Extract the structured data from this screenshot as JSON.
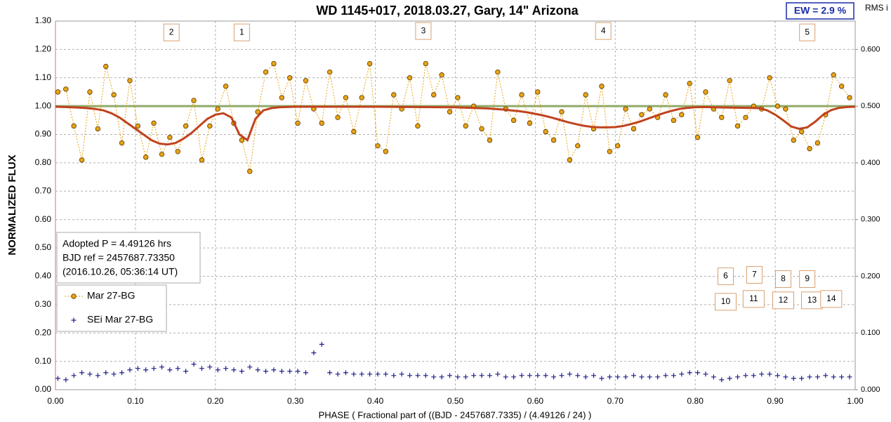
{
  "chart_data": {
    "type": "scatter",
    "title": "WD 1145+017, 2018.03.27, Gary,  14\" Arizona",
    "x_label": "PHASE  ( Fractional part of ((BJD - 2457687.7335)  / (4.49126  / 24) )",
    "y_label": "NORMALIZED  FLUX",
    "y2_label": "RMS i",
    "ew_label": "EW =  2.9 %",
    "info_lines": [
      "Adopted P = 4.49126 hrs",
      "BJD ref = 2457687.73350",
      "(2016.10.26, 05:36:14 UT)"
    ],
    "xlim": [
      0,
      1
    ],
    "ylim": [
      0,
      1.3
    ],
    "y2lim": [
      0,
      0.65
    ],
    "grid": true,
    "xticks": [
      {
        "value": 0,
        "label": "0.00"
      },
      {
        "value": 0.1,
        "label": "0.10"
      },
      {
        "value": 0.2,
        "label": "0.20"
      },
      {
        "value": 0.3,
        "label": "0.30"
      },
      {
        "value": 0.4,
        "label": "0.40"
      },
      {
        "value": 0.5,
        "label": "0.50"
      },
      {
        "value": 0.6,
        "label": "0.60"
      },
      {
        "value": 0.7,
        "label": "0.70"
      },
      {
        "value": 0.8,
        "label": "0.80"
      },
      {
        "value": 0.9,
        "label": "0.90"
      },
      {
        "value": 1,
        "label": "1.00"
      }
    ],
    "yticks": [
      {
        "value": 0,
        "label": "0.00"
      },
      {
        "value": 0.1,
        "label": "0.10"
      },
      {
        "value": 0.2,
        "label": "0.20"
      },
      {
        "value": 0.3,
        "label": "0.30"
      },
      {
        "value": 0.4,
        "label": "0.40"
      },
      {
        "value": 0.5,
        "label": "0.50"
      },
      {
        "value": 0.6,
        "label": "0.60"
      },
      {
        "value": 0.7,
        "label": "0.70"
      },
      {
        "value": 0.8,
        "label": "0.80"
      },
      {
        "value": 0.9,
        "label": "0.90"
      },
      {
        "value": 1,
        "label": "1.00"
      },
      {
        "value": 1.1,
        "label": "1.10"
      },
      {
        "value": 1.2,
        "label": "1.20"
      },
      {
        "value": 1.3,
        "label": "1.30"
      }
    ],
    "y2ticks": [
      {
        "value": 0,
        "label": "0.000"
      },
      {
        "value": 0.1,
        "label": "0.100"
      },
      {
        "value": 0.2,
        "label": "0.200"
      },
      {
        "value": 0.3,
        "label": "0.300"
      },
      {
        "value": 0.4,
        "label": "0.400"
      },
      {
        "value": 0.5,
        "label": "0.500"
      },
      {
        "value": 0.6,
        "label": "0.600"
      }
    ],
    "reference_line": {
      "value": 1,
      "color": "#8faa6a"
    },
    "series": [
      {
        "name": "Mar 27-BG",
        "color": "#e8a317",
        "marker": "circle",
        "line": "dotted",
        "x": [
          0.003,
          0.013,
          0.023,
          0.033,
          0.043,
          0.053,
          0.063,
          0.073,
          0.083,
          0.093,
          0.103,
          0.113,
          0.123,
          0.133,
          0.143,
          0.153,
          0.163,
          0.173,
          0.183,
          0.193,
          0.203,
          0.213,
          0.223,
          0.233,
          0.243,
          0.253,
          0.263,
          0.273,
          0.283,
          0.293,
          0.303,
          0.313,
          0.323,
          0.333,
          0.343,
          0.353,
          0.363,
          0.373,
          0.383,
          0.393,
          0.403,
          0.413,
          0.423,
          0.433,
          0.443,
          0.453,
          0.463,
          0.473,
          0.483,
          0.493,
          0.503,
          0.513,
          0.523,
          0.533,
          0.543,
          0.553,
          0.563,
          0.573,
          0.583,
          0.593,
          0.603,
          0.613,
          0.623,
          0.633,
          0.643,
          0.653,
          0.663,
          0.673,
          0.683,
          0.693,
          0.703,
          0.713,
          0.723,
          0.733,
          0.743,
          0.753,
          0.763,
          0.773,
          0.783,
          0.793,
          0.803,
          0.813,
          0.823,
          0.833,
          0.843,
          0.853,
          0.863,
          0.873,
          0.883,
          0.893,
          0.903,
          0.913,
          0.923,
          0.933,
          0.943,
          0.953,
          0.963,
          0.973,
          0.983,
          0.993
        ],
        "values": [
          1.05,
          1.06,
          0.93,
          0.81,
          1.05,
          0.92,
          1.14,
          1.04,
          0.87,
          1.09,
          0.93,
          0.82,
          0.94,
          0.83,
          0.89,
          0.84,
          0.93,
          1.02,
          0.81,
          0.93,
          0.99,
          1.07,
          0.94,
          0.88,
          0.77,
          0.98,
          1.12,
          1.15,
          1.03,
          1.1,
          0.94,
          1.09,
          0.99,
          0.94,
          1.12,
          0.96,
          1.03,
          0.91,
          1.03,
          1.15,
          0.86,
          0.84,
          1.04,
          0.99,
          1.1,
          0.93,
          1.15,
          1.04,
          1.11,
          0.98,
          1.03,
          0.93,
          1,
          0.92,
          0.88,
          1.12,
          0.99,
          0.95,
          1.04,
          0.94,
          1.05,
          0.91,
          0.88,
          0.98,
          0.81,
          0.86,
          1.04,
          0.92,
          1.07,
          0.84,
          0.86,
          0.99,
          0.92,
          0.97,
          0.99,
          0.96,
          1.04,
          0.95,
          0.97,
          1.08,
          0.89,
          1.05,
          0.99,
          0.96,
          1.09,
          0.93,
          0.96,
          1,
          0.99,
          1.1,
          1,
          0.99,
          0.88,
          0.91,
          0.85,
          0.87,
          0.97,
          1.11,
          1.07,
          1.03
        ]
      },
      {
        "name": "SEi Mar 27-BG",
        "color": "#1f1f8f",
        "marker": "plus",
        "line": "none",
        "x": [
          0.003,
          0.013,
          0.023,
          0.033,
          0.043,
          0.053,
          0.063,
          0.073,
          0.083,
          0.093,
          0.103,
          0.113,
          0.123,
          0.133,
          0.143,
          0.153,
          0.163,
          0.173,
          0.183,
          0.193,
          0.203,
          0.213,
          0.223,
          0.233,
          0.243,
          0.253,
          0.263,
          0.273,
          0.283,
          0.293,
          0.303,
          0.313,
          0.323,
          0.333,
          0.343,
          0.353,
          0.363,
          0.373,
          0.383,
          0.393,
          0.403,
          0.413,
          0.423,
          0.433,
          0.443,
          0.453,
          0.463,
          0.473,
          0.483,
          0.493,
          0.503,
          0.513,
          0.523,
          0.533,
          0.543,
          0.553,
          0.563,
          0.573,
          0.583,
          0.593,
          0.603,
          0.613,
          0.623,
          0.633,
          0.643,
          0.653,
          0.663,
          0.673,
          0.683,
          0.693,
          0.703,
          0.713,
          0.723,
          0.733,
          0.743,
          0.753,
          0.763,
          0.773,
          0.783,
          0.793,
          0.803,
          0.813,
          0.823,
          0.833,
          0.843,
          0.853,
          0.863,
          0.873,
          0.883,
          0.893,
          0.903,
          0.913,
          0.923,
          0.933,
          0.943,
          0.953,
          0.963,
          0.973,
          0.983,
          0.993
        ],
        "values": [
          0.04,
          0.035,
          0.05,
          0.06,
          0.055,
          0.05,
          0.06,
          0.055,
          0.06,
          0.07,
          0.075,
          0.07,
          0.075,
          0.08,
          0.07,
          0.075,
          0.065,
          0.09,
          0.075,
          0.08,
          0.07,
          0.075,
          0.07,
          0.065,
          0.08,
          0.07,
          0.065,
          0.07,
          0.065,
          0.065,
          0.065,
          0.06,
          0.13,
          0.16,
          0.06,
          0.055,
          0.06,
          0.055,
          0.055,
          0.055,
          0.055,
          0.055,
          0.05,
          0.055,
          0.05,
          0.05,
          0.05,
          0.045,
          0.045,
          0.05,
          0.045,
          0.045,
          0.05,
          0.05,
          0.05,
          0.055,
          0.045,
          0.045,
          0.05,
          0.05,
          0.05,
          0.05,
          0.045,
          0.05,
          0.055,
          0.05,
          0.045,
          0.05,
          0.04,
          0.045,
          0.045,
          0.045,
          0.05,
          0.045,
          0.045,
          0.045,
          0.05,
          0.05,
          0.055,
          0.06,
          0.06,
          0.055,
          0.045,
          0.035,
          0.04,
          0.045,
          0.05,
          0.05,
          0.055,
          0.055,
          0.05,
          0.045,
          0.04,
          0.04,
          0.045,
          0.045,
          0.05,
          0.045,
          0.045,
          0.045
        ]
      },
      {
        "color": "#c0431e",
        "marker": "none",
        "line": "solid",
        "x": [
          0,
          0.01,
          0.02,
          0.03,
          0.04,
          0.05,
          0.06,
          0.07,
          0.08,
          0.09,
          0.1,
          0.11,
          0.12,
          0.13,
          0.14,
          0.15,
          0.16,
          0.17,
          0.18,
          0.19,
          0.2,
          0.21,
          0.22,
          0.23,
          0.24,
          0.25,
          0.26,
          0.27,
          0.28,
          0.29,
          0.3,
          0.4,
          0.5,
          0.51,
          0.52,
          0.53,
          0.54,
          0.55,
          0.56,
          0.57,
          0.58,
          0.59,
          0.6,
          0.61,
          0.62,
          0.63,
          0.64,
          0.65,
          0.66,
          0.67,
          0.68,
          0.69,
          0.7,
          0.71,
          0.72,
          0.73,
          0.74,
          0.75,
          0.76,
          0.77,
          0.78,
          0.79,
          0.8,
          0.81,
          0.88,
          0.89,
          0.9,
          0.91,
          0.92,
          0.93,
          0.94,
          0.95,
          0.96,
          0.97,
          0.98,
          0.99,
          1
        ],
        "values": [
          0.998,
          0.997,
          0.996,
          0.995,
          0.993,
          0.99,
          0.985,
          0.975,
          0.96,
          0.94,
          0.92,
          0.9,
          0.88,
          0.868,
          0.865,
          0.87,
          0.885,
          0.905,
          0.93,
          0.955,
          0.97,
          0.975,
          0.96,
          0.9,
          0.88,
          0.955,
          0.985,
          0.993,
          0.996,
          0.997,
          0.998,
          0.998,
          0.996,
          0.995,
          0.994,
          0.993,
          0.992,
          0.99,
          0.988,
          0.985,
          0.982,
          0.978,
          0.973,
          0.967,
          0.96,
          0.952,
          0.944,
          0.937,
          0.931,
          0.927,
          0.925,
          0.925,
          0.926,
          0.93,
          0.937,
          0.945,
          0.955,
          0.965,
          0.975,
          0.983,
          0.99,
          0.994,
          0.996,
          0.997,
          0.993,
          0.985,
          0.97,
          0.95,
          0.928,
          0.92,
          0.925,
          0.945,
          0.97,
          0.986,
          0.994,
          0.997,
          0.998
        ]
      }
    ],
    "annotations": [
      {
        "text": "2",
        "x": 0.145,
        "y": 1.26
      },
      {
        "text": "1",
        "x": 0.233,
        "y": 1.26
      },
      {
        "text": "3",
        "x": 0.46,
        "y": 1.265
      },
      {
        "text": "4",
        "x": 0.685,
        "y": 1.265
      },
      {
        "text": "5",
        "x": 0.94,
        "y": 1.26
      },
      {
        "text": "6",
        "x": 0.838,
        "y": 0.4
      },
      {
        "text": "7",
        "x": 0.874,
        "y": 0.405
      },
      {
        "text": "8",
        "x": 0.91,
        "y": 0.39
      },
      {
        "text": "9",
        "x": 0.94,
        "y": 0.39
      },
      {
        "text": "10",
        "x": 0.838,
        "y": 0.31
      },
      {
        "text": "11",
        "x": 0.873,
        "y": 0.32
      },
      {
        "text": "12",
        "x": 0.91,
        "y": 0.315
      },
      {
        "text": "13",
        "x": 0.946,
        "y": 0.315
      },
      {
        "text": "14",
        "x": 0.97,
        "y": 0.32
      }
    ]
  }
}
